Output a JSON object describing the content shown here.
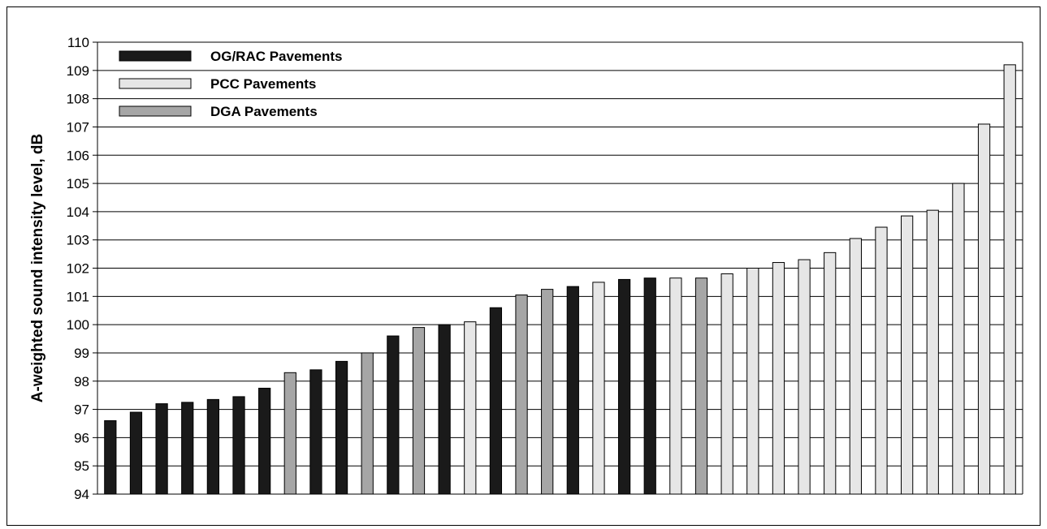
{
  "chart_data": {
    "type": "bar",
    "ylabel": "A-weighted sound intensity level, dB",
    "ylim": [
      94,
      110
    ],
    "yticks": [
      94,
      95,
      96,
      97,
      98,
      99,
      100,
      101,
      102,
      103,
      104,
      105,
      106,
      107,
      108,
      109,
      110
    ],
    "grid": true,
    "legend_position": "top-left",
    "series_styles": [
      {
        "key": "og",
        "name": "OG/RAC Pavements",
        "color": "#1a1a1a"
      },
      {
        "key": "pcc",
        "name": "PCC Pavements",
        "color": "#e6e6e6"
      },
      {
        "key": "dga",
        "name": "DGA Pavements",
        "color": "#a6a6a6"
      }
    ],
    "bars": [
      {
        "series": "og",
        "value": 96.6
      },
      {
        "series": "og",
        "value": 96.9
      },
      {
        "series": "og",
        "value": 97.2
      },
      {
        "series": "og",
        "value": 97.25
      },
      {
        "series": "og",
        "value": 97.35
      },
      {
        "series": "og",
        "value": 97.45
      },
      {
        "series": "og",
        "value": 97.75
      },
      {
        "series": "dga",
        "value": 98.3
      },
      {
        "series": "og",
        "value": 98.4
      },
      {
        "series": "og",
        "value": 98.7
      },
      {
        "series": "dga",
        "value": 99.0
      },
      {
        "series": "og",
        "value": 99.6
      },
      {
        "series": "dga",
        "value": 99.9
      },
      {
        "series": "og",
        "value": 100.0
      },
      {
        "series": "pcc",
        "value": 100.1
      },
      {
        "series": "og",
        "value": 100.6
      },
      {
        "series": "dga",
        "value": 101.05
      },
      {
        "series": "dga",
        "value": 101.25
      },
      {
        "series": "og",
        "value": 101.35
      },
      {
        "series": "pcc",
        "value": 101.5
      },
      {
        "series": "og",
        "value": 101.6
      },
      {
        "series": "og",
        "value": 101.65
      },
      {
        "series": "pcc",
        "value": 101.65
      },
      {
        "series": "dga",
        "value": 101.65
      },
      {
        "series": "pcc",
        "value": 101.8
      },
      {
        "series": "pcc",
        "value": 102.0
      },
      {
        "series": "pcc",
        "value": 102.2
      },
      {
        "series": "pcc",
        "value": 102.3
      },
      {
        "series": "pcc",
        "value": 102.55
      },
      {
        "series": "pcc",
        "value": 103.05
      },
      {
        "series": "pcc",
        "value": 103.45
      },
      {
        "series": "pcc",
        "value": 103.85
      },
      {
        "series": "pcc",
        "value": 104.05
      },
      {
        "series": "pcc",
        "value": 105.0
      },
      {
        "series": "pcc",
        "value": 107.1
      },
      {
        "series": "pcc",
        "value": 109.2
      }
    ]
  }
}
